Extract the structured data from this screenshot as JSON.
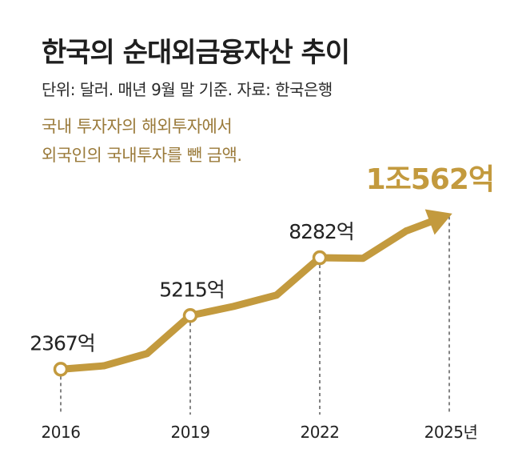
{
  "header": {
    "title": "한국의 순대외금융자산 추이",
    "subtitle": "단위: 달러. 매년 9월 말 기준. 자료: 한국은행",
    "note_lines": [
      "국내 투자자의 해외투자에서",
      "외국인의 국내투자를 뺀 금액."
    ]
  },
  "colors": {
    "line": "#c39a3e",
    "highlight": "#c39a3e",
    "text": "#222222"
  },
  "chart_data": {
    "type": "line",
    "title": "한국의 순대외금융자산 추이",
    "xlabel": "",
    "ylabel": "",
    "unit": "억 달러",
    "x": [
      2016,
      2017,
      2018,
      2019,
      2020,
      2021,
      2022,
      2023,
      2024,
      2025
    ],
    "series": [
      {
        "values": [
          2367,
          2550,
          3200,
          5215,
          5700,
          6300,
          8282,
          8250,
          9700,
          10562
        ]
      }
    ],
    "marked_points": [
      {
        "x": 2016,
        "label": "2367억"
      },
      {
        "x": 2019,
        "label": "5215억"
      },
      {
        "x": 2022,
        "label": "8282억"
      },
      {
        "x": 2025,
        "label": "1조562억"
      }
    ],
    "x_tick_labels": [
      {
        "x": 2016,
        "label": "2016"
      },
      {
        "x": 2019,
        "label": "2019"
      },
      {
        "x": 2022,
        "label": "2022"
      },
      {
        "x": 2025,
        "label": "2025년"
      }
    ],
    "ylim": [
      2000,
      11000
    ],
    "grid": false,
    "legend": "none"
  }
}
